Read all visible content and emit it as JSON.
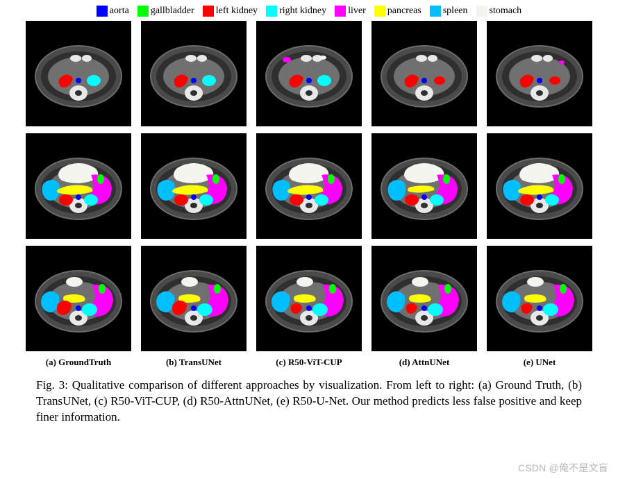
{
  "legend": {
    "items": [
      {
        "label": "aorta",
        "color": "#0000ff"
      },
      {
        "label": "gallbladder",
        "color": "#00ff00"
      },
      {
        "label": "left kidney",
        "color": "#ff0000"
      },
      {
        "label": "right kidney",
        "color": "#00ffff"
      },
      {
        "label": "liver",
        "color": "#ff00ff"
      },
      {
        "label": "pancreas",
        "color": "#ffff00"
      },
      {
        "label": "spleen",
        "color": "#00bfff"
      },
      {
        "label": "stomach",
        "color": "#f5f5f0"
      }
    ]
  },
  "columns": [
    {
      "key": "a",
      "label": "(a) GroundTruth"
    },
    {
      "key": "b",
      "label": "(b) TransUNet"
    },
    {
      "key": "c",
      "label": "(c) R50-ViT-CUP"
    },
    {
      "key": "d",
      "label": "(d) AttnUNet"
    },
    {
      "key": "e",
      "label": "(e) UNet"
    }
  ],
  "palette": {
    "body_fill": "#4a4a4a",
    "body_stroke": "#6b6b6b",
    "bone": "#e8e8e8",
    "tissue_dark": "#2f2f2f",
    "tissue_light": "#707070",
    "black": "#000000"
  },
  "caption": {
    "prefix": "Fig. 3:",
    "text": " Qualitative comparison of different approaches by visualization. From left to right: (a) Ground Truth, (b) TransUNet, (c) R50-ViT-CUP, (d) R50-AttnUNet, (e) R50-U-Net. Our method predicts less false positive and keep finer information."
  },
  "watermark": "CSDN @俺不是文盲"
}
